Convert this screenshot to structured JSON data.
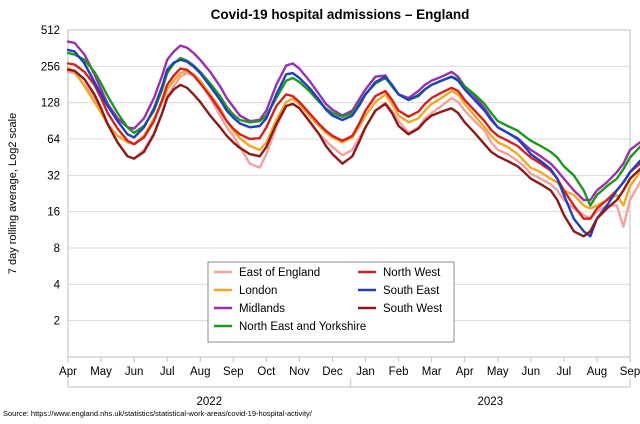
{
  "chart_data": {
    "type": "line",
    "title": "Covid-19 hospital admissions – England",
    "ylabel": "7 day rolling average, Log2 scale",
    "yscale": "log2",
    "ylim": [
      1,
      512
    ],
    "y_ticks": [
      512,
      256,
      128,
      64,
      32,
      16,
      8,
      4,
      2
    ],
    "grid": true,
    "x_months": [
      "Apr",
      "May",
      "Jun",
      "Jul",
      "Aug",
      "Sep",
      "Oct",
      "Nov",
      "Dec",
      "Jan",
      "Feb",
      "Mar",
      "Apr",
      "May",
      "Jun",
      "Jul",
      "Aug",
      "Sep"
    ],
    "years": [
      {
        "label": "2022",
        "start": 0,
        "end": 9
      },
      {
        "label": "2023",
        "start": 9,
        "end": 17
      }
    ],
    "legend_position": "bottom-center",
    "source": "Source: https://www.england.nhs.uk/statistics/statistical-work-areas/covid-19-hospital-activity/",
    "x_unit": "months since 1 Apr 2022",
    "series": [
      {
        "name": "East of England",
        "color": "#f4a0a0",
        "x": [
          0,
          0.2,
          0.5,
          0.8,
          1.0,
          1.2,
          1.5,
          1.8,
          2.0,
          2.3,
          2.6,
          2.85,
          3.0,
          3.2,
          3.4,
          3.6,
          3.8,
          4.0,
          4.3,
          4.6,
          4.8,
          5.0,
          5.2,
          5.5,
          5.8,
          6.0,
          6.3,
          6.6,
          6.8,
          7.0,
          7.3,
          7.6,
          7.8,
          8.0,
          8.3,
          8.6,
          8.8,
          9.0,
          9.3,
          9.6,
          9.8,
          10.0,
          10.3,
          10.6,
          10.8,
          11.0,
          11.3,
          11.6,
          11.8,
          12.0,
          12.3,
          12.6,
          12.8,
          13.0,
          13.3,
          13.6,
          13.8,
          14.0,
          14.3,
          14.6,
          14.8,
          15.0,
          15.3,
          15.6,
          15.8,
          16.0,
          16.3,
          16.6,
          16.8,
          17.0,
          17.3,
          17.55
        ],
        "values": [
          230,
          225,
          180,
          140,
          110,
          85,
          60,
          46,
          44,
          52,
          72,
          105,
          145,
          175,
          210,
          225,
          215,
          190,
          140,
          100,
          80,
          68,
          55,
          40,
          37,
          48,
          80,
          120,
          125,
          115,
          90,
          70,
          62,
          55,
          47,
          52,
          65,
          80,
          110,
          128,
          110,
          90,
          72,
          80,
          95,
          105,
          120,
          140,
          130,
          110,
          90,
          75,
          60,
          52,
          48,
          42,
          38,
          33,
          30,
          27,
          24,
          20,
          17,
          15,
          14,
          16,
          18,
          18,
          12,
          20,
          28,
          33
        ]
      },
      {
        "name": "London",
        "color": "#f5a623",
        "x": [
          0,
          0.2,
          0.5,
          0.8,
          1.0,
          1.2,
          1.5,
          1.8,
          2.0,
          2.3,
          2.6,
          2.85,
          3.0,
          3.2,
          3.4,
          3.6,
          3.8,
          4.0,
          4.3,
          4.6,
          4.8,
          5.0,
          5.2,
          5.5,
          5.8,
          6.0,
          6.3,
          6.6,
          6.8,
          7.0,
          7.3,
          7.6,
          7.8,
          8.0,
          8.3,
          8.6,
          8.8,
          9.0,
          9.3,
          9.6,
          9.8,
          10.0,
          10.3,
          10.6,
          10.8,
          11.0,
          11.3,
          11.6,
          11.8,
          12.0,
          12.3,
          12.6,
          12.8,
          13.0,
          13.3,
          13.6,
          13.8,
          14.0,
          14.3,
          14.6,
          14.8,
          15.0,
          15.3,
          15.6,
          15.8,
          16.0,
          16.3,
          16.6,
          16.8,
          17.0,
          17.3,
          17.55
        ],
        "values": [
          250,
          230,
          175,
          130,
          105,
          85,
          68,
          60,
          58,
          68,
          95,
          130,
          165,
          195,
          225,
          235,
          220,
          195,
          150,
          115,
          90,
          75,
          65,
          56,
          52,
          60,
          92,
          130,
          138,
          125,
          100,
          82,
          72,
          66,
          60,
          66,
          80,
          100,
          130,
          150,
          125,
          100,
          88,
          95,
          110,
          125,
          140,
          160,
          150,
          125,
          100,
          80,
          68,
          60,
          55,
          48,
          42,
          37,
          34,
          30,
          28,
          24,
          22,
          18,
          17,
          18,
          20,
          22,
          18,
          26,
          34,
          40
        ]
      },
      {
        "name": "Midlands",
        "color": "#9b2fae",
        "x": [
          0,
          0.2,
          0.5,
          0.8,
          1.0,
          1.2,
          1.5,
          1.8,
          2.0,
          2.3,
          2.6,
          2.85,
          3.0,
          3.2,
          3.4,
          3.6,
          3.8,
          4.0,
          4.3,
          4.6,
          4.8,
          5.0,
          5.2,
          5.5,
          5.8,
          6.0,
          6.3,
          6.6,
          6.8,
          7.0,
          7.3,
          7.6,
          7.8,
          8.0,
          8.3,
          8.6,
          8.8,
          9.0,
          9.3,
          9.6,
          9.8,
          10.0,
          10.3,
          10.6,
          10.8,
          11.0,
          11.3,
          11.6,
          11.8,
          12.0,
          12.3,
          12.6,
          12.8,
          13.0,
          13.3,
          13.6,
          13.8,
          14.0,
          14.3,
          14.6,
          14.8,
          15.0,
          15.3,
          15.6,
          15.8,
          16.0,
          16.3,
          16.6,
          16.8,
          17.0,
          17.3,
          17.55
        ],
        "values": [
          410,
          400,
          320,
          220,
          165,
          125,
          95,
          80,
          78,
          95,
          140,
          215,
          290,
          340,
          380,
          365,
          330,
          290,
          230,
          175,
          140,
          118,
          100,
          90,
          92,
          110,
          180,
          260,
          270,
          245,
          195,
          150,
          125,
          112,
          100,
          110,
          135,
          165,
          210,
          215,
          175,
          150,
          140,
          160,
          180,
          195,
          210,
          230,
          210,
          175,
          145,
          115,
          95,
          80,
          72,
          65,
          58,
          52,
          46,
          40,
          35,
          30,
          24,
          20,
          20,
          24,
          28,
          34,
          40,
          52,
          60,
          58
        ]
      },
      {
        "name": "North East and Yorkshire",
        "color": "#1a9a1a",
        "x": [
          0,
          0.2,
          0.5,
          0.8,
          1.0,
          1.2,
          1.5,
          1.8,
          2.0,
          2.3,
          2.6,
          2.85,
          3.0,
          3.2,
          3.4,
          3.6,
          3.8,
          4.0,
          4.3,
          4.6,
          4.8,
          5.0,
          5.2,
          5.5,
          5.8,
          6.0,
          6.3,
          6.6,
          6.8,
          7.0,
          7.3,
          7.6,
          7.8,
          8.0,
          8.3,
          8.6,
          8.8,
          9.0,
          9.3,
          9.6,
          9.8,
          10.0,
          10.3,
          10.6,
          10.8,
          11.0,
          11.3,
          11.6,
          11.8,
          12.0,
          12.3,
          12.6,
          12.8,
          13.0,
          13.3,
          13.6,
          13.8,
          14.0,
          14.3,
          14.6,
          14.8,
          15.0,
          15.3,
          15.6,
          15.8,
          16.0,
          16.3,
          16.6,
          16.8,
          17.0,
          17.3,
          17.55
        ],
        "values": [
          330,
          320,
          290,
          230,
          185,
          145,
          105,
          80,
          72,
          82,
          110,
          165,
          225,
          270,
          300,
          285,
          260,
          230,
          185,
          145,
          118,
          102,
          92,
          88,
          90,
          100,
          140,
          195,
          205,
          190,
          160,
          130,
          115,
          105,
          98,
          105,
          125,
          150,
          185,
          205,
          175,
          150,
          135,
          145,
          165,
          180,
          195,
          210,
          200,
          175,
          150,
          125,
          105,
          90,
          82,
          75,
          68,
          62,
          56,
          50,
          45,
          38,
          32,
          24,
          18,
          22,
          26,
          30,
          36,
          45,
          55,
          64
        ]
      },
      {
        "name": "North West",
        "color": "#d42020",
        "x": [
          0,
          0.2,
          0.5,
          0.8,
          1.0,
          1.2,
          1.5,
          1.8,
          2.0,
          2.3,
          2.6,
          2.85,
          3.0,
          3.2,
          3.4,
          3.6,
          3.8,
          4.0,
          4.3,
          4.6,
          4.8,
          5.0,
          5.2,
          5.5,
          5.8,
          6.0,
          6.3,
          6.6,
          6.8,
          7.0,
          7.3,
          7.6,
          7.8,
          8.0,
          8.3,
          8.6,
          8.8,
          9.0,
          9.3,
          9.6,
          9.8,
          10.0,
          10.3,
          10.6,
          10.8,
          11.0,
          11.3,
          11.6,
          11.8,
          12.0,
          12.3,
          12.6,
          12.8,
          13.0,
          13.3,
          13.6,
          13.8,
          14.0,
          14.3,
          14.6,
          14.8,
          15.0,
          15.3,
          15.6,
          15.8,
          16.0,
          16.3,
          16.6,
          16.8,
          17.0,
          17.3,
          17.55
        ],
        "values": [
          270,
          265,
          230,
          180,
          140,
          105,
          78,
          62,
          58,
          66,
          90,
          135,
          180,
          215,
          245,
          240,
          215,
          185,
          145,
          110,
          90,
          78,
          70,
          64,
          65,
          80,
          120,
          150,
          145,
          130,
          105,
          85,
          75,
          68,
          62,
          68,
          85,
          110,
          145,
          160,
          135,
          110,
          98,
          108,
          125,
          140,
          155,
          170,
          160,
          135,
          110,
          90,
          76,
          68,
          62,
          56,
          50,
          45,
          40,
          35,
          30,
          24,
          18,
          14,
          14,
          17,
          20,
          24,
          28,
          34,
          40,
          44
        ]
      },
      {
        "name": "South East",
        "color": "#2040c0",
        "x": [
          0,
          0.2,
          0.5,
          0.8,
          1.0,
          1.2,
          1.5,
          1.8,
          2.0,
          2.3,
          2.6,
          2.85,
          3.0,
          3.2,
          3.4,
          3.6,
          3.8,
          4.0,
          4.3,
          4.6,
          4.8,
          5.0,
          5.2,
          5.5,
          5.8,
          6.0,
          6.3,
          6.6,
          6.8,
          7.0,
          7.3,
          7.6,
          7.8,
          8.0,
          8.3,
          8.6,
          8.8,
          9.0,
          9.3,
          9.6,
          9.8,
          10.0,
          10.3,
          10.6,
          10.8,
          11.0,
          11.3,
          11.6,
          11.8,
          12.0,
          12.3,
          12.6,
          12.8,
          13.0,
          13.3,
          13.6,
          13.8,
          14.0,
          14.3,
          14.6,
          14.8,
          15.0,
          15.3,
          15.6,
          15.8,
          16.0,
          16.3,
          16.6,
          16.8,
          17.0,
          17.3,
          17.55
        ],
        "values": [
          350,
          340,
          270,
          190,
          150,
          120,
          90,
          70,
          66,
          80,
          115,
          175,
          240,
          275,
          290,
          280,
          255,
          225,
          175,
          135,
          110,
          96,
          86,
          80,
          82,
          95,
          150,
          220,
          225,
          205,
          170,
          135,
          112,
          100,
          92,
          100,
          120,
          150,
          190,
          210,
          180,
          150,
          135,
          148,
          165,
          180,
          195,
          210,
          195,
          165,
          135,
          110,
          92,
          80,
          72,
          64,
          56,
          48,
          42,
          36,
          30,
          22,
          14,
          11,
          10,
          14,
          18,
          24,
          28,
          34,
          42,
          48
        ]
      },
      {
        "name": "South West",
        "color": "#8b1a1a",
        "x": [
          0,
          0.2,
          0.5,
          0.8,
          1.0,
          1.2,
          1.5,
          1.8,
          2.0,
          2.3,
          2.6,
          2.85,
          3.0,
          3.2,
          3.4,
          3.6,
          3.8,
          4.0,
          4.3,
          4.6,
          4.8,
          5.0,
          5.2,
          5.5,
          5.8,
          6.0,
          6.3,
          6.6,
          6.8,
          7.0,
          7.3,
          7.6,
          7.8,
          8.0,
          8.3,
          8.6,
          8.8,
          9.0,
          9.3,
          9.6,
          9.8,
          10.0,
          10.3,
          10.6,
          10.8,
          11.0,
          11.3,
          11.6,
          11.8,
          12.0,
          12.3,
          12.6,
          12.8,
          13.0,
          13.3,
          13.6,
          13.8,
          14.0,
          14.3,
          14.6,
          14.8,
          15.0,
          15.3,
          15.6,
          15.8,
          16.0,
          16.3,
          16.6,
          16.8,
          17.0,
          17.3,
          17.55
        ],
        "values": [
          240,
          235,
          200,
          150,
          115,
          85,
          60,
          46,
          44,
          50,
          70,
          105,
          140,
          165,
          180,
          170,
          150,
          130,
          100,
          80,
          68,
          60,
          54,
          48,
          46,
          55,
          85,
          120,
          125,
          115,
          90,
          70,
          56,
          48,
          40,
          46,
          60,
          80,
          110,
          125,
          105,
          82,
          70,
          78,
          90,
          100,
          108,
          115,
          105,
          88,
          72,
          58,
          50,
          46,
          42,
          38,
          34,
          30,
          27,
          24,
          20,
          15,
          11,
          10,
          11,
          14,
          17,
          20,
          24,
          30,
          36,
          40
        ]
      }
    ]
  }
}
